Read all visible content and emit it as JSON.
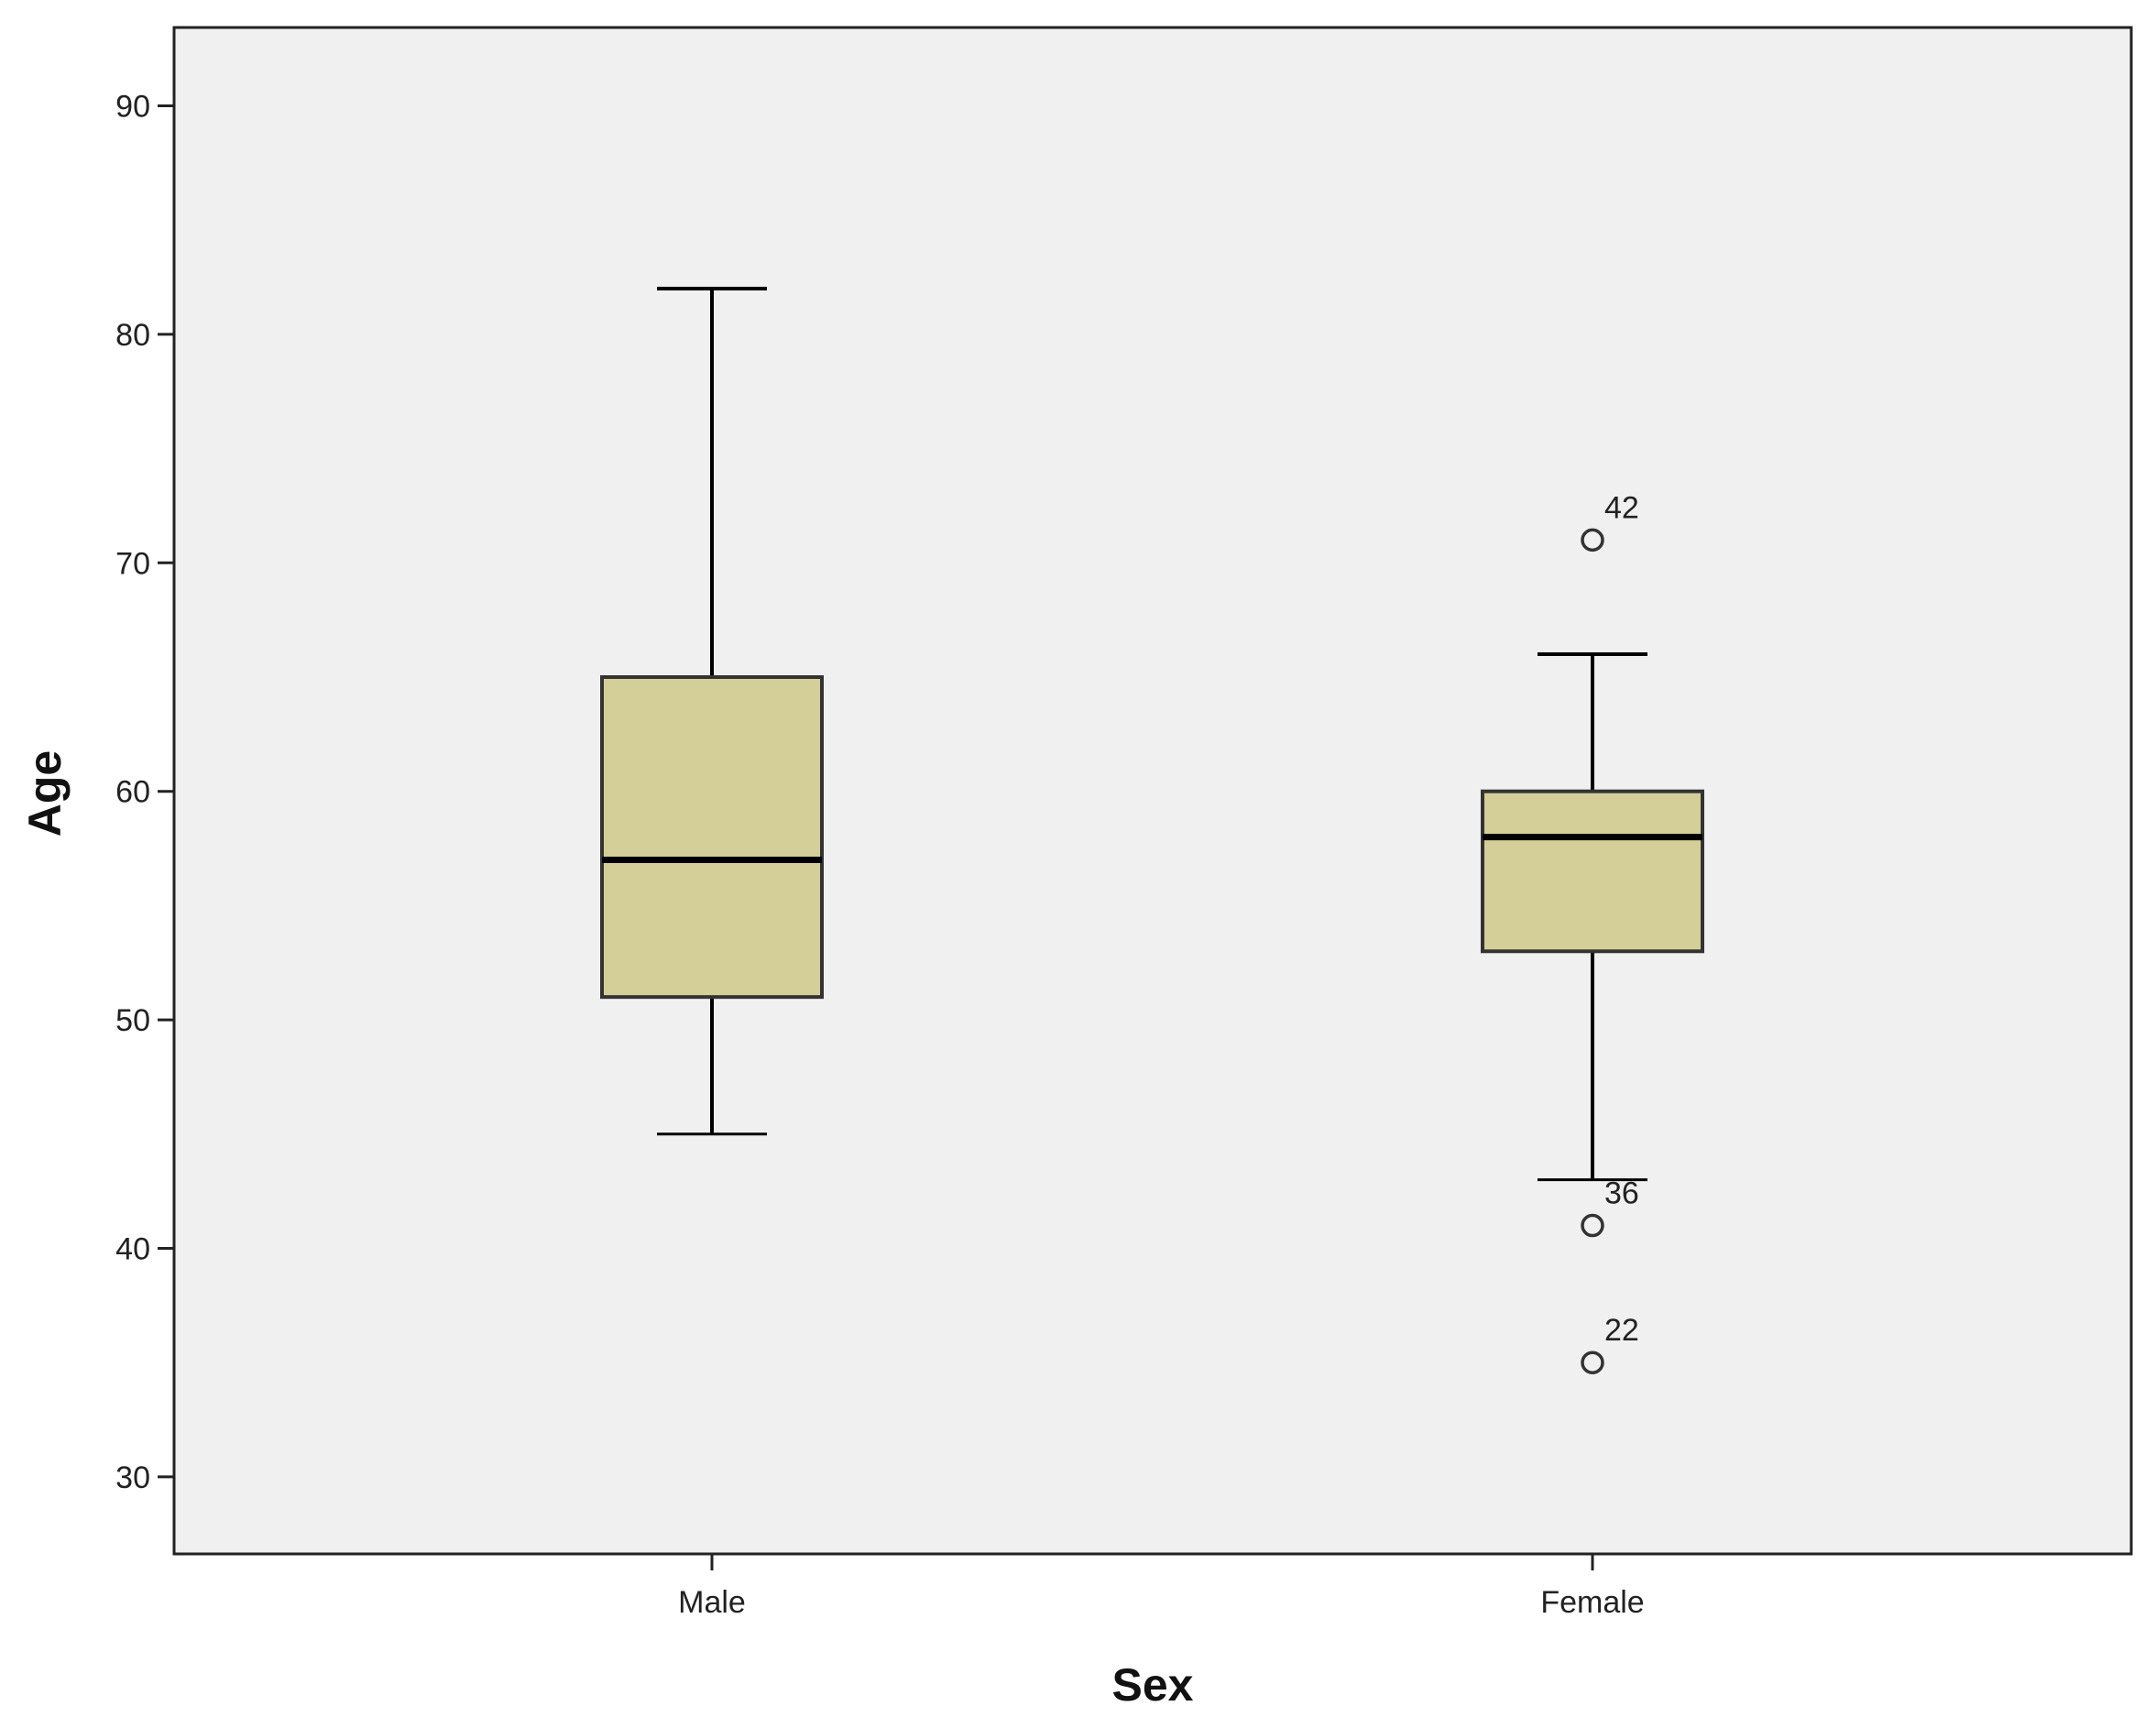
{
  "chart_data": {
    "type": "boxplot",
    "title": "",
    "xlabel": "Sex",
    "ylabel": "Age",
    "ylim": [
      26.5,
      93.5
    ],
    "yticks": [
      30,
      40,
      50,
      60,
      70,
      80,
      90
    ],
    "grid": false,
    "categories": [
      "Male",
      "Female"
    ],
    "boxes": [
      {
        "category": "Male",
        "whisker_low": 45,
        "q1": 51,
        "median": 57,
        "q3": 65,
        "whisker_high": 82,
        "outliers": []
      },
      {
        "category": "Female",
        "whisker_low": 43,
        "q1": 53,
        "median": 58,
        "q3": 60,
        "whisker_high": 66,
        "outliers": [
          {
            "value": 71,
            "label": "42"
          },
          {
            "value": 41,
            "label": "36"
          },
          {
            "value": 35,
            "label": "22"
          }
        ]
      }
    ],
    "colors": {
      "box_fill": "#d4cf98",
      "plot_background": "#f0f0f0",
      "stroke": "#000000"
    }
  }
}
